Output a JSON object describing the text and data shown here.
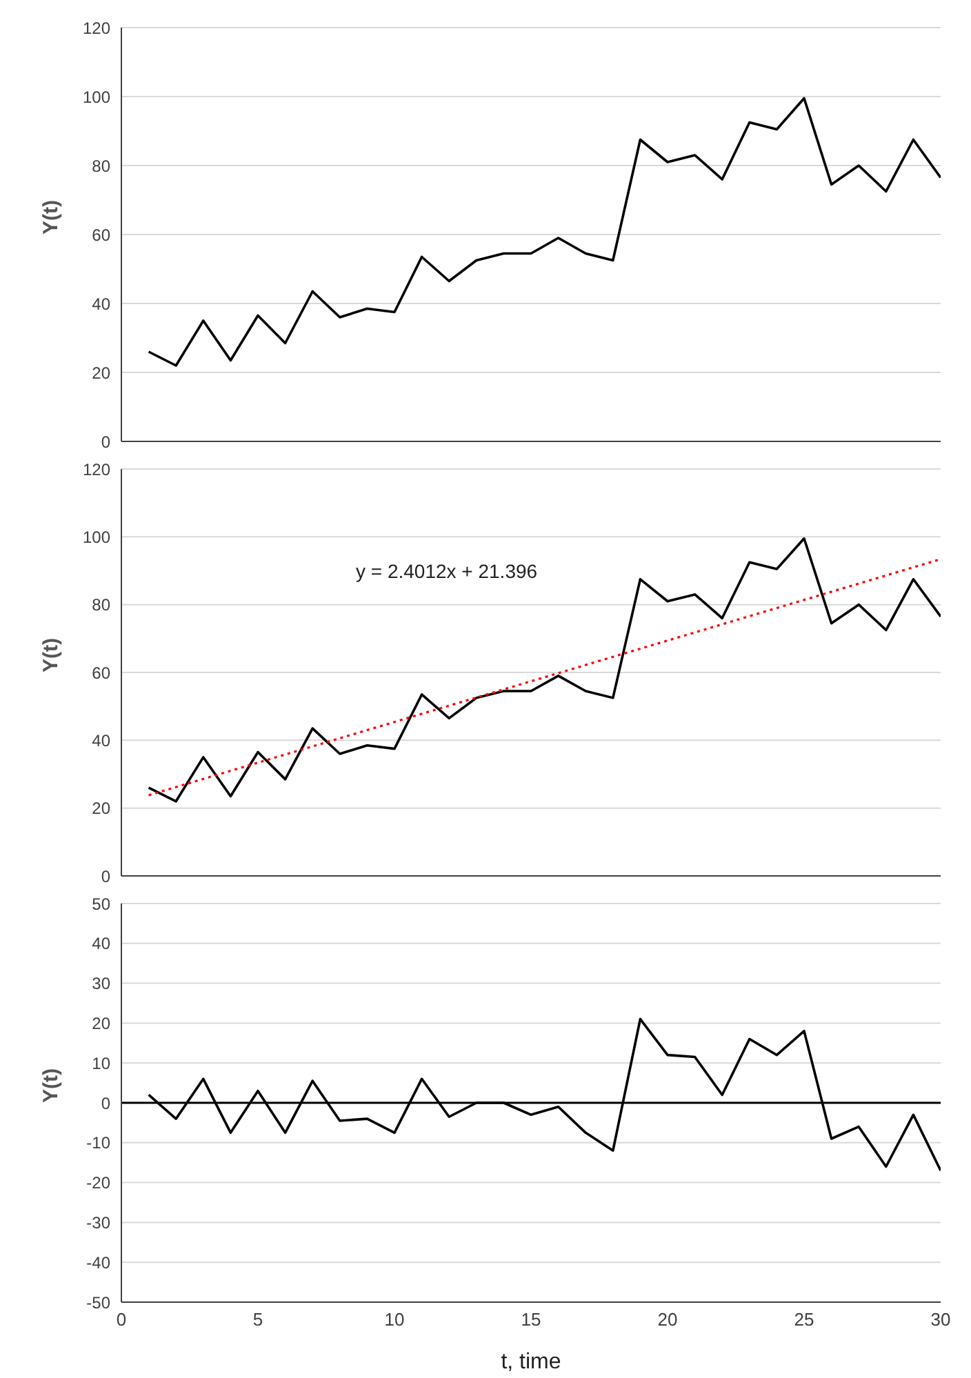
{
  "chart_data": [
    {
      "type": "line",
      "ylabel": "Y(t)",
      "xlim": [
        0,
        30
      ],
      "ylim": [
        0,
        120
      ],
      "yticks": [
        0,
        20,
        40,
        60,
        80,
        100,
        120
      ],
      "grid": "y",
      "tick_labels": "y",
      "legend": false,
      "marker": "none",
      "x": [
        1,
        2,
        3,
        4,
        5,
        6,
        7,
        8,
        9,
        10,
        11,
        12,
        13,
        14,
        15,
        16,
        17,
        18,
        19,
        20,
        21,
        22,
        23,
        24,
        25,
        26,
        27,
        28,
        29,
        30
      ],
      "series": [
        {
          "color": "#000000",
          "values": [
            26,
            22,
            35,
            23.5,
            36.5,
            28.5,
            43.5,
            36,
            38.5,
            37.5,
            53.5,
            46.5,
            52.5,
            54.5,
            54.5,
            59,
            54.5,
            52.5,
            87.5,
            81,
            83,
            76,
            92.5,
            90.5,
            99.5,
            74.5,
            80,
            72.5,
            87.5,
            76.5
          ]
        }
      ]
    },
    {
      "type": "line",
      "ylabel": "Y(t)",
      "xlim": [
        0,
        30
      ],
      "ylim": [
        0,
        120
      ],
      "yticks": [
        0,
        20,
        40,
        60,
        80,
        100,
        120
      ],
      "grid": "y",
      "tick_labels": "y",
      "legend": false,
      "marker": "none",
      "annotations": [
        "y = 2.4012x + 21.396"
      ],
      "x": [
        1,
        2,
        3,
        4,
        5,
        6,
        7,
        8,
        9,
        10,
        11,
        12,
        13,
        14,
        15,
        16,
        17,
        18,
        19,
        20,
        21,
        22,
        23,
        24,
        25,
        26,
        27,
        28,
        29,
        30
      ],
      "series": [
        {
          "color": "#000000",
          "values": [
            26,
            22,
            35,
            23.5,
            36.5,
            28.5,
            43.5,
            36,
            38.5,
            37.5,
            53.5,
            46.5,
            52.5,
            54.5,
            54.5,
            59,
            54.5,
            52.5,
            87.5,
            81,
            83,
            76,
            92.5,
            90.5,
            99.5,
            74.5,
            80,
            72.5,
            87.5,
            76.5
          ]
        },
        {
          "type": "line",
          "color": "#ff0000",
          "line_style": "dotted",
          "x": [
            1,
            30
          ],
          "values": [
            23.8,
            93.4
          ]
        }
      ]
    },
    {
      "type": "line",
      "ylabel": "Y(t)",
      "xlabel": "t, time",
      "xlim": [
        0,
        30
      ],
      "xticks": [
        0,
        5,
        10,
        15,
        20,
        25,
        30
      ],
      "ylim": [
        -50,
        50
      ],
      "yticks": [
        -50,
        -40,
        -30,
        -20,
        -10,
        0,
        10,
        20,
        30,
        40,
        50
      ],
      "grid": "y",
      "legend": false,
      "marker": "none",
      "ref_lines": [
        {
          "axis": "y",
          "value": 0,
          "color": "#000000"
        }
      ],
      "x": [
        1,
        2,
        3,
        4,
        5,
        6,
        7,
        8,
        9,
        10,
        11,
        12,
        13,
        14,
        15,
        16,
        17,
        18,
        19,
        20,
        21,
        22,
        23,
        24,
        25,
        26,
        27,
        28,
        29,
        30
      ],
      "series": [
        {
          "color": "#000000",
          "values": [
            2,
            -4,
            6,
            -7.5,
            3,
            -7.5,
            5.5,
            -4.5,
            -4,
            -7.5,
            6,
            -3.5,
            0,
            0,
            -3,
            -1,
            -7.5,
            -12,
            21,
            12,
            11.5,
            2,
            16,
            12,
            18,
            -9,
            -6,
            -16,
            -3,
            -17
          ]
        }
      ]
    }
  ]
}
